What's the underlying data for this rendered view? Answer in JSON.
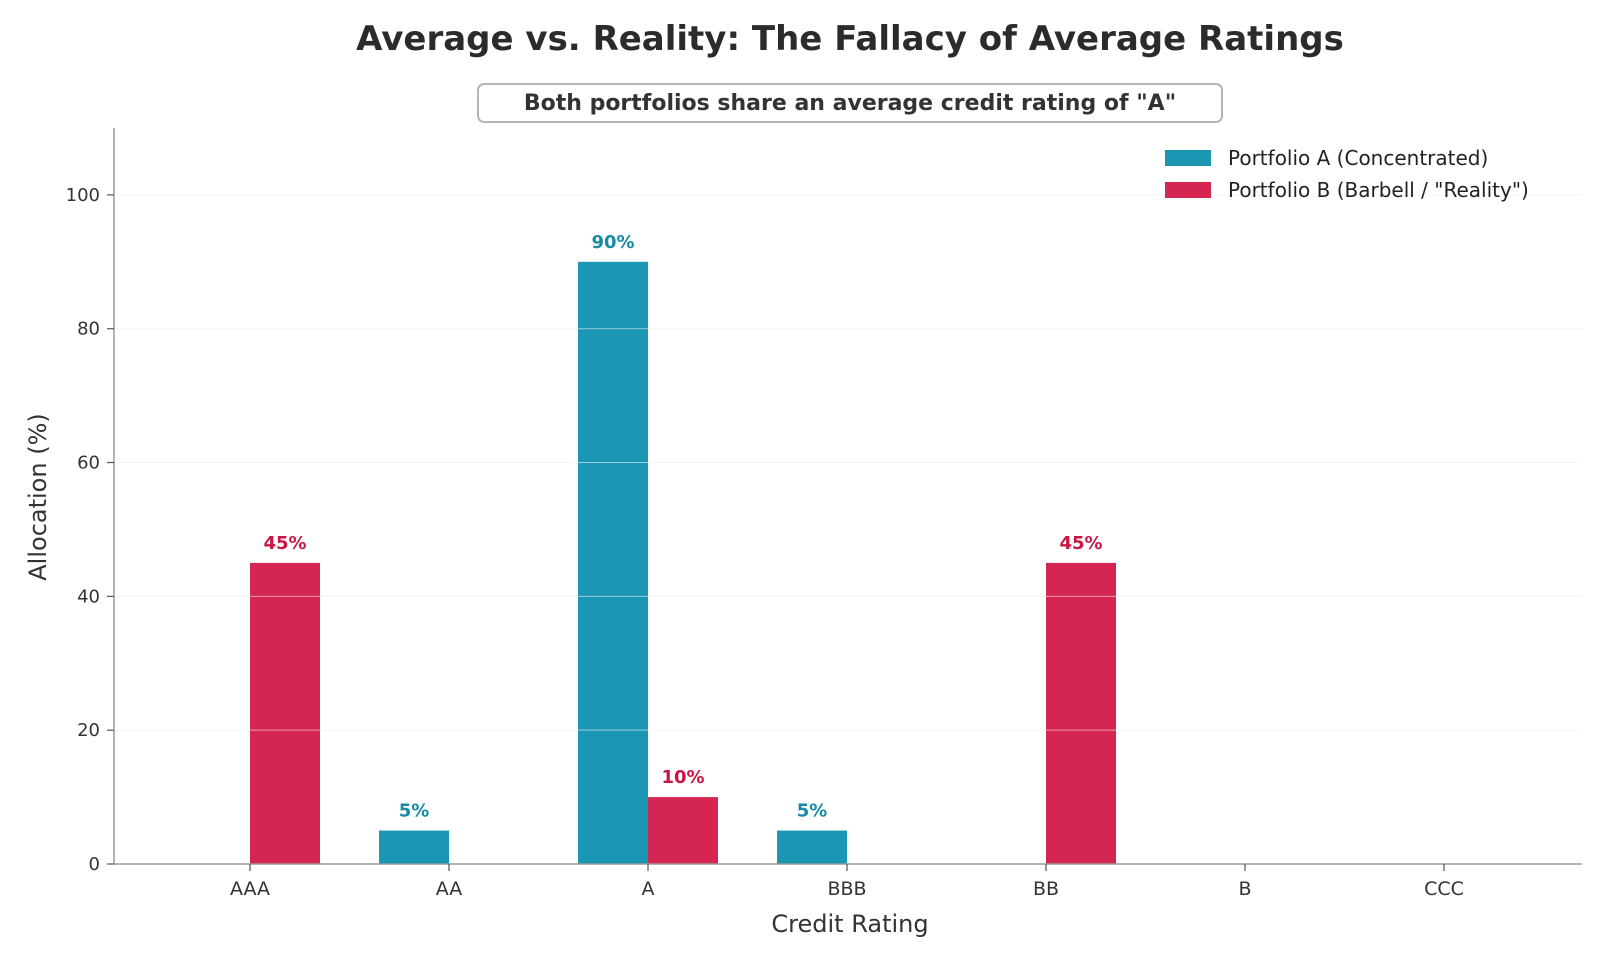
{
  "chart_data": {
    "type": "bar",
    "title": "Average vs. Reality: The Fallacy of Average Ratings",
    "subtitle": "Both portfolios share an average credit rating of \"A\"",
    "xlabel": "Credit Rating",
    "ylabel": "Allocation (%)",
    "categories": [
      "AAA",
      "AA",
      "A",
      "BBB",
      "BB",
      "B",
      "CCC"
    ],
    "ylim": [
      0,
      110
    ],
    "yticks": [
      0,
      20,
      40,
      60,
      80,
      100
    ],
    "grid": true,
    "legend_position": "top-right",
    "series": [
      {
        "name": "Portfolio A (Concentrated)",
        "color": "#1b96b3",
        "label_color": "#168aa6",
        "values": [
          0,
          5,
          90,
          5,
          0,
          0,
          0
        ],
        "data_labels": [
          "",
          "5%",
          "90%",
          "5%",
          "",
          "",
          ""
        ]
      },
      {
        "name": "Portfolio B (Barbell / \"Reality\")",
        "color": "#d42650",
        "label_color": "#cc1444",
        "values": [
          45,
          0,
          10,
          0,
          45,
          0,
          0
        ],
        "data_labels": [
          "45%",
          "",
          "10%",
          "",
          "45%",
          "",
          ""
        ]
      }
    ]
  }
}
